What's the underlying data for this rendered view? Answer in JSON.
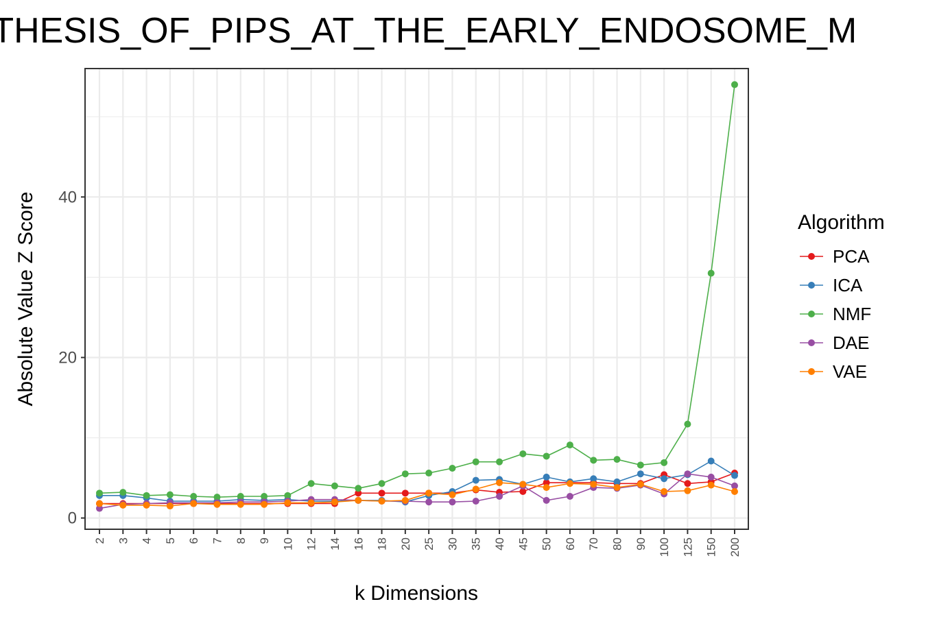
{
  "chart_data": {
    "type": "line",
    "title": "NTHESIS_OF_PIPS_AT_THE_EARLY_ENDOSOME_M",
    "xlabel": "k Dimensions",
    "ylabel": "Absolute Value Z Score",
    "categories": [
      "2",
      "3",
      "4",
      "5",
      "6",
      "7",
      "8",
      "9",
      "10",
      "12",
      "14",
      "16",
      "18",
      "20",
      "25",
      "30",
      "35",
      "40",
      "45",
      "50",
      "60",
      "70",
      "80",
      "90",
      "100",
      "125",
      "150",
      "200"
    ],
    "ylim": [
      -1.4,
      56
    ],
    "yticks": [
      0,
      20,
      40
    ],
    "ytick_labels": [
      "0",
      "20",
      "40"
    ],
    "grid": true,
    "legend": {
      "title": "Algorithm",
      "placement": "right"
    },
    "series": [
      {
        "name": "PCA",
        "color": "#e41a1c",
        "values": [
          1.8,
          1.8,
          1.8,
          1.8,
          1.8,
          1.8,
          1.8,
          1.8,
          1.8,
          1.8,
          1.8,
          3.1,
          3.1,
          3.1,
          3.1,
          3.1,
          3.5,
          3.2,
          3.3,
          4.4,
          4.4,
          4.4,
          4.3,
          4.3,
          5.4,
          4.3,
          4.5,
          5.6
        ]
      },
      {
        "name": "ICA",
        "color": "#377eb8",
        "values": [
          2.8,
          2.8,
          2.5,
          2.1,
          2.1,
          2.1,
          2.3,
          2.2,
          2.3,
          2.1,
          2.1,
          2.2,
          2.2,
          2.0,
          2.8,
          3.3,
          4.7,
          4.8,
          4.2,
          5.1,
          4.5,
          4.9,
          4.5,
          5.5,
          4.9,
          5.4,
          7.1,
          5.3
        ]
      },
      {
        "name": "NMF",
        "color": "#4daf4a",
        "values": [
          3.1,
          3.2,
          2.8,
          2.9,
          2.7,
          2.6,
          2.7,
          2.7,
          2.8,
          4.3,
          4.0,
          3.7,
          4.3,
          5.5,
          5.6,
          6.2,
          7.0,
          7.0,
          8.0,
          7.7,
          9.1,
          7.2,
          7.3,
          6.6,
          6.9,
          11.7,
          30.5,
          54.0
        ]
      },
      {
        "name": "DAE",
        "color": "#984ea3",
        "values": [
          1.2,
          1.7,
          1.8,
          1.9,
          1.9,
          1.9,
          2.0,
          2.0,
          2.1,
          2.3,
          2.3,
          2.2,
          2.1,
          2.1,
          2.0,
          2.0,
          2.1,
          2.7,
          4.0,
          2.2,
          2.7,
          3.8,
          3.7,
          4.1,
          3.0,
          5.5,
          5.1,
          4.0
        ]
      },
      {
        "name": "VAE",
        "color": "#ff7f00",
        "values": [
          1.8,
          1.6,
          1.6,
          1.5,
          1.8,
          1.7,
          1.7,
          1.7,
          1.9,
          1.9,
          2.0,
          2.2,
          2.1,
          2.2,
          3.1,
          2.9,
          3.6,
          4.4,
          4.2,
          3.8,
          4.3,
          4.2,
          3.8,
          4.2,
          3.3,
          3.4,
          4.1,
          3.3
        ]
      }
    ]
  }
}
